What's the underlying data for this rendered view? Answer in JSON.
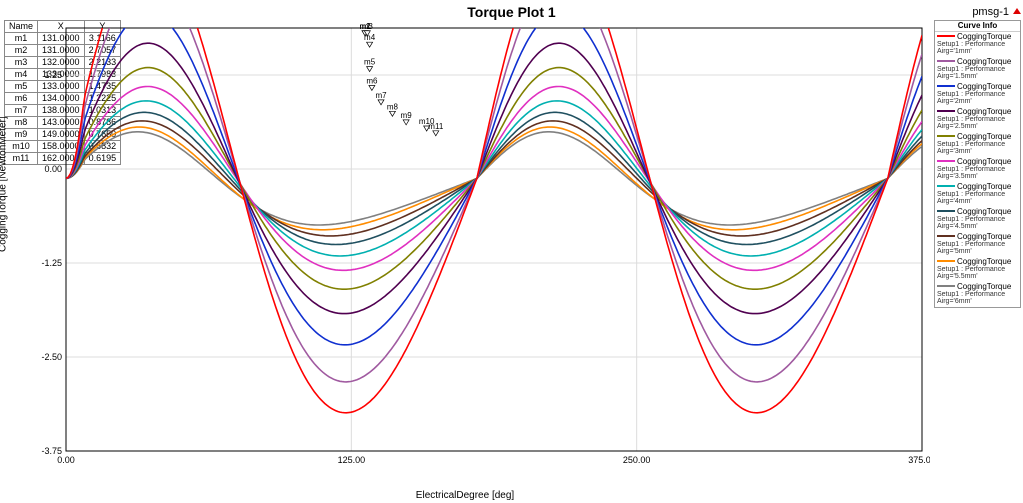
{
  "title": "Torque Plot 1",
  "project": "pmsg-1",
  "xlabel": "ElectricalDegree [deg]",
  "ylabel": "CoggingTorque [NewtonMeter]",
  "plot": {
    "xlim": [
      0,
      375
    ],
    "ylim": [
      -3.75,
      1.875
    ],
    "xticks": [
      0,
      125,
      250,
      375
    ],
    "xtick_labels": [
      "0.00",
      "125.00",
      "250.00",
      "375.00"
    ],
    "yticks": [
      -3.75,
      -2.5,
      -1.25,
      0.0,
      1.25
    ],
    "ytick_labels": [
      "-3.75",
      "-2.50",
      "-1.25",
      "0.00",
      "1.25"
    ],
    "grid_color": "#dcdcdc",
    "axis_color": "#000000",
    "background": "#ffffff",
    "line_width": 1.6,
    "font_size_axis": 10,
    "font_size_tick": 9,
    "aspect_w": 900,
    "aspect_h": 455
  },
  "legend": {
    "title": "Curve Info",
    "items": [
      {
        "label": "CoggingTorque",
        "sub": "Setup1 : Performance Airg='1mm'",
        "color": "#ff0000"
      },
      {
        "label": "CoggingTorque",
        "sub": "Setup1 : Performance Airg='1.5mm'",
        "color": "#a05aa0"
      },
      {
        "label": "CoggingTorque",
        "sub": "Setup1 : Performance Airg='2mm'",
        "color": "#1030d0"
      },
      {
        "label": "CoggingTorque",
        "sub": "Setup1 : Performance Airg='2.5mm'",
        "color": "#500050"
      },
      {
        "label": "CoggingTorque",
        "sub": "Setup1 : Performance Airg='3mm'",
        "color": "#808000"
      },
      {
        "label": "CoggingTorque",
        "sub": "Setup1 : Performance Airg='3.5mm'",
        "color": "#e030c0"
      },
      {
        "label": "CoggingTorque",
        "sub": "Setup1 : Performance Airg='4mm'",
        "color": "#00b0b0"
      },
      {
        "label": "CoggingTorque",
        "sub": "Setup1 : Performance Airg='4.5mm'",
        "color": "#205060"
      },
      {
        "label": "CoggingTorque",
        "sub": "Setup1 : Performance Airg='5mm'",
        "color": "#603020"
      },
      {
        "label": "CoggingTorque",
        "sub": "Setup1 : Performance Airg='5.5mm'",
        "color": "#ff8c00"
      },
      {
        "label": "CoggingTorque",
        "sub": "Setup1 : Performance Airg='6mm'",
        "color": "#808080"
      }
    ]
  },
  "marker_table": {
    "columns": [
      "Name",
      "X",
      "Y"
    ],
    "rows": [
      [
        "m1",
        "131.0000",
        "3.1166"
      ],
      [
        "m2",
        "131.0000",
        "2.7057"
      ],
      [
        "m3",
        "132.0000",
        "2.2133"
      ],
      [
        "m4",
        "133.0000",
        "1.7983"
      ],
      [
        "m5",
        "133.0000",
        "1.4735"
      ],
      [
        "m6",
        "134.0000",
        "1.2225"
      ],
      [
        "m7",
        "138.0000",
        "1.0313"
      ],
      [
        "m8",
        "143.0000",
        "0.8786"
      ],
      [
        "m9",
        "149.0000",
        "0.7650"
      ],
      [
        "m10",
        "158.0000",
        "0.6832"
      ],
      [
        "m11",
        "162.0000",
        "0.6195"
      ]
    ]
  },
  "series": [
    {
      "id": "m1",
      "color": "#ff0000",
      "amp": 3.1166,
      "peak_deg": 131,
      "label": "m1"
    },
    {
      "id": "m2",
      "color": "#a05aa0",
      "amp": 2.7057,
      "peak_deg": 131,
      "label": "m2"
    },
    {
      "id": "m3",
      "color": "#1030d0",
      "amp": 2.2133,
      "peak_deg": 132,
      "label": "m3"
    },
    {
      "id": "m4",
      "color": "#500050",
      "amp": 1.7983,
      "peak_deg": 133,
      "label": "m4"
    },
    {
      "id": "m5",
      "color": "#808000",
      "amp": 1.4735,
      "peak_deg": 133,
      "label": "m5"
    },
    {
      "id": "m6",
      "color": "#e030c0",
      "amp": 1.2225,
      "peak_deg": 134,
      "label": "m6"
    },
    {
      "id": "m7",
      "color": "#00b0b0",
      "amp": 1.0313,
      "peak_deg": 138,
      "label": "m7"
    },
    {
      "id": "m8",
      "color": "#205060",
      "amp": 0.8786,
      "peak_deg": 143,
      "label": "m8"
    },
    {
      "id": "m9",
      "color": "#603020",
      "amp": 0.765,
      "peak_deg": 149,
      "label": "m9"
    },
    {
      "id": "m10",
      "color": "#ff8c00",
      "amp": 0.6832,
      "peak_deg": 158,
      "label": "m10"
    },
    {
      "id": "m11",
      "color": "#808080",
      "amp": 0.6195,
      "peak_deg": 162,
      "label": "m11"
    }
  ],
  "waveform": {
    "period_deg": 180,
    "trough_offset_deg": 45,
    "peak_offset_deg": 131,
    "samples": 400,
    "clip_top": true,
    "clip_value": 1.25,
    "y_offset": -0.125
  }
}
